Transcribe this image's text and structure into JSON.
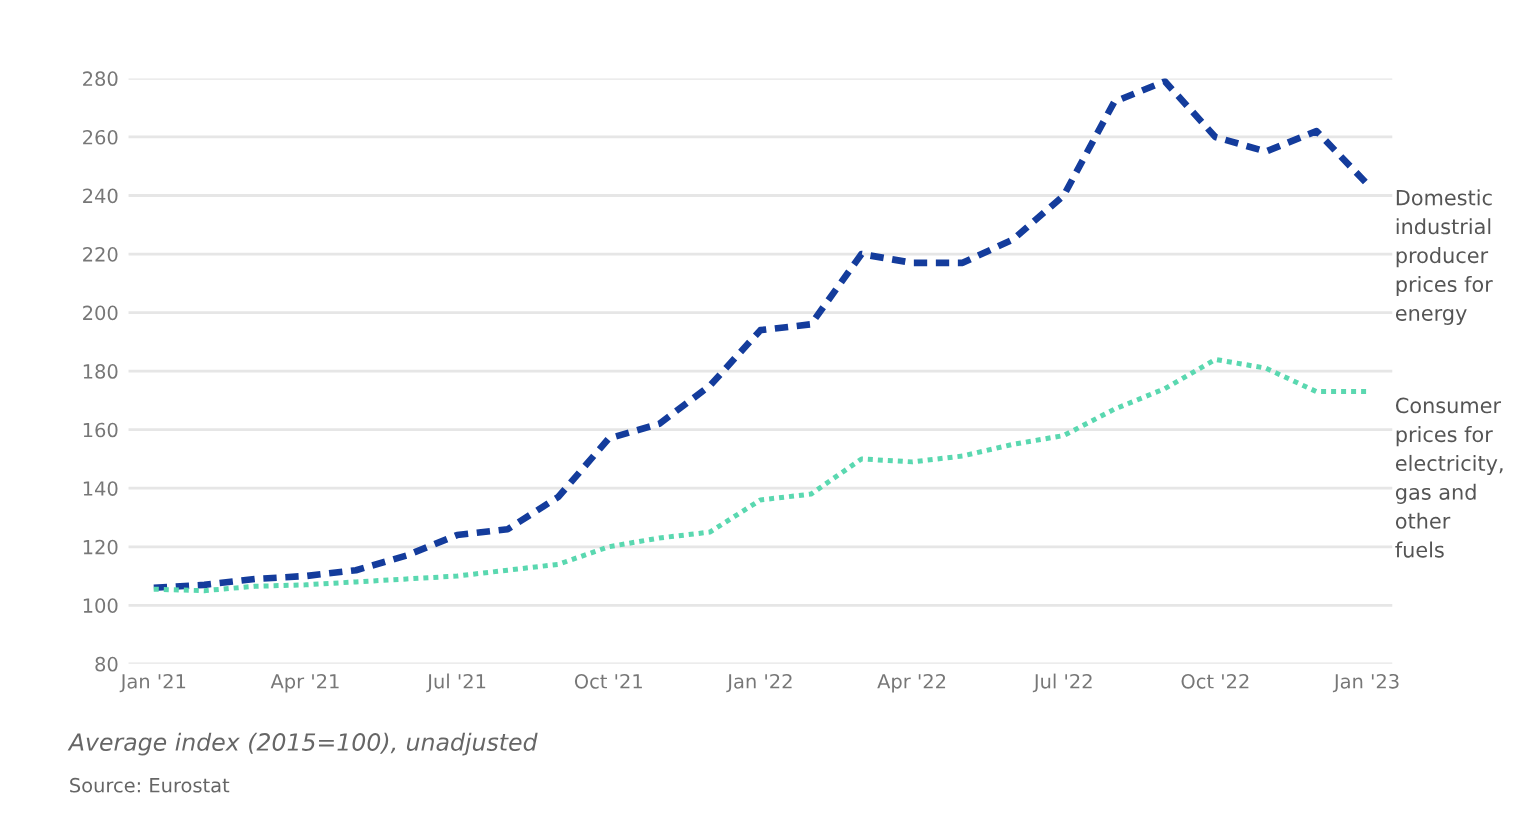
{
  "chart_data": {
    "type": "line",
    "categories": [
      "Jan '21",
      null,
      null,
      "Apr '21",
      null,
      null,
      "Jul '21",
      null,
      null,
      "Oct '21",
      null,
      null,
      "Jan '22",
      null,
      null,
      "Apr '22",
      null,
      null,
      "Jul '22",
      null,
      null,
      "Oct '22",
      null,
      null,
      "Jan '23"
    ],
    "series": [
      {
        "name": "Domestic\nindustrial\nproducer\nprices for\nenergy",
        "color": "#143c9c",
        "line_style": "dashed",
        "values": [
          106,
          107,
          109,
          110,
          112,
          117,
          124,
          126,
          137,
          157,
          162,
          175,
          194,
          196,
          220,
          217,
          217,
          225,
          240,
          272,
          279,
          260,
          255,
          262,
          244
        ]
      },
      {
        "name": "Consumer\nprices for\nelectricity,\ngas and\nother\nfuels",
        "color": "#5ad8b0",
        "line_style": "dotted",
        "values": [
          105.5,
          105,
          106.5,
          107,
          108,
          109,
          110,
          112,
          114,
          120,
          123,
          125,
          136,
          138,
          150,
          149,
          151,
          155,
          158,
          167,
          174,
          184,
          181,
          173,
          173
        ]
      }
    ],
    "ylim": [
      80,
      280
    ],
    "yticks": [
      80,
      100,
      120,
      140,
      160,
      180,
      200,
      220,
      240,
      260,
      280
    ],
    "grid": "y",
    "legend": false,
    "annotations": [
      "Average index (2015=100), unadjusted",
      "Source: Eurostat"
    ]
  }
}
